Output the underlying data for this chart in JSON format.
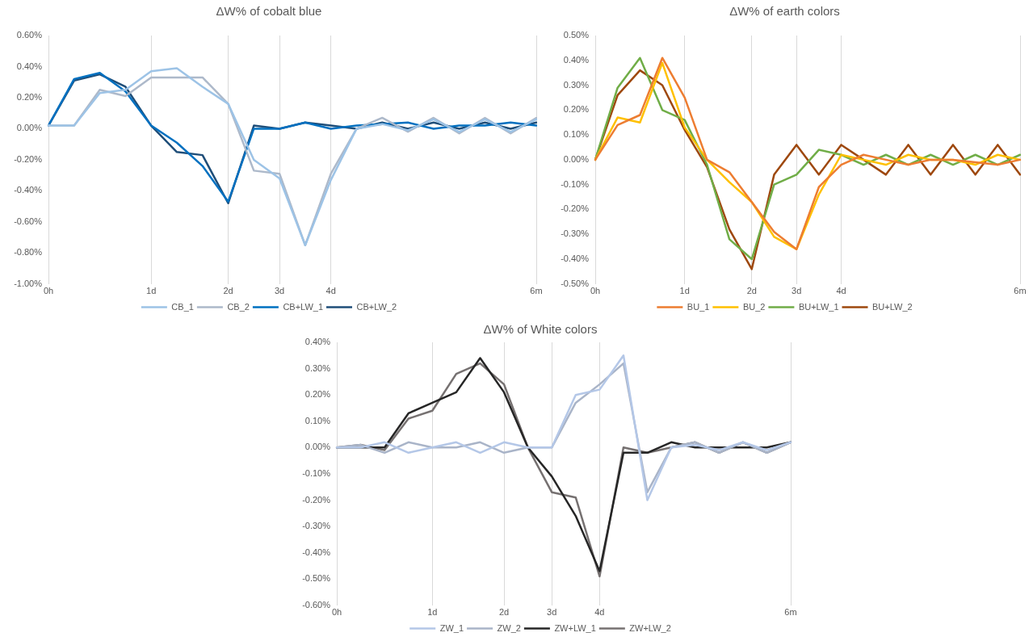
{
  "chart_data": [
    {
      "type": "line",
      "title": "ΔW% of cobalt blue",
      "categories": [
        "0h",
        null,
        null,
        null,
        "1d",
        null,
        null,
        "2d",
        null,
        "3d",
        null,
        "4d",
        null,
        null,
        null,
        null,
        null,
        null,
        null,
        "6m"
      ],
      "series": [
        {
          "name": "CB_1",
          "color": "#9dc3e6",
          "values": [
            0.02,
            0.02,
            0.23,
            0.25,
            0.37,
            0.39,
            0.27,
            0.16,
            -0.2,
            -0.32,
            -0.75,
            -0.33,
            0,
            0.03,
            -0.01,
            0.06,
            -0.02,
            0.06,
            -0.02,
            0.06
          ]
        },
        {
          "name": "CB_2",
          "color": "#adb9ca",
          "values": [
            0.02,
            0.02,
            0.25,
            0.21,
            0.33,
            0.33,
            0.33,
            0.16,
            -0.27,
            -0.29,
            -0.75,
            -0.29,
            0,
            0.07,
            -0.02,
            0.07,
            -0.03,
            0.07,
            -0.03,
            0.07
          ]
        },
        {
          "name": "CB+LW_1",
          "color": "#0070c0",
          "values": [
            0.02,
            0.32,
            0.36,
            0.24,
            0.02,
            -0.09,
            -0.24,
            -0.47,
            0,
            0,
            0.04,
            0,
            0.02,
            0.03,
            0.04,
            0,
            0.02,
            0.02,
            0.04,
            0.02
          ]
        },
        {
          "name": "CB+LW_2",
          "color": "#1f4e79",
          "values": [
            0.02,
            0.31,
            0.35,
            0.27,
            0.02,
            -0.15,
            -0.17,
            -0.48,
            0.02,
            0,
            0.04,
            0.02,
            0,
            0.04,
            0,
            0.04,
            0,
            0.04,
            0,
            0.04
          ]
        }
      ],
      "ylim": [
        -1,
        0.6
      ],
      "yticks": [
        {
          "value": -1,
          "label": "-1.00%"
        },
        {
          "value": -0.8,
          "label": "-0.80%"
        },
        {
          "value": -0.6,
          "label": "-0.60%"
        },
        {
          "value": -0.4,
          "label": "-0.40%"
        },
        {
          "value": -0.2,
          "label": "-0.20%"
        },
        {
          "value": 0,
          "label": "0.00%"
        },
        {
          "value": 0.2,
          "label": "0.20%"
        },
        {
          "value": 0.4,
          "label": "0.40%"
        },
        {
          "value": 0.6,
          "label": "0.60%"
        }
      ],
      "grid": "x",
      "legend": "bottom"
    },
    {
      "type": "line",
      "title": "ΔW% of earth colors",
      "categories": [
        "0h",
        null,
        null,
        null,
        "1d",
        null,
        null,
        "2d",
        null,
        "3d",
        null,
        "4d",
        null,
        null,
        null,
        null,
        null,
        null,
        null,
        "6m"
      ],
      "series": [
        {
          "name": "BU_1",
          "color": "#ed7d31",
          "values": [
            0,
            0.14,
            0.18,
            0.41,
            0.25,
            0,
            -0.05,
            -0.17,
            -0.29,
            -0.36,
            -0.11,
            -0.02,
            0.02,
            0,
            -0.02,
            0,
            0,
            -0.01,
            -0.02,
            0
          ]
        },
        {
          "name": "BU_2",
          "color": "#ffc000",
          "values": [
            0,
            0.17,
            0.15,
            0.39,
            0.13,
            0,
            -0.09,
            -0.17,
            -0.31,
            -0.36,
            -0.14,
            0.02,
            0,
            -0.02,
            0.02,
            0,
            0,
            -0.02,
            0.02,
            0
          ]
        },
        {
          "name": "BU+LW_1",
          "color": "#70ad47",
          "values": [
            0,
            0.29,
            0.41,
            0.2,
            0.16,
            -0.02,
            -0.32,
            -0.4,
            -0.1,
            -0.06,
            0.04,
            0.02,
            -0.02,
            0.02,
            -0.02,
            0.02,
            -0.02,
            0.02,
            -0.02,
            0.02
          ]
        },
        {
          "name": "BU+LW_2",
          "color": "#9e480e",
          "values": [
            0,
            0.26,
            0.36,
            0.3,
            0.12,
            -0.03,
            -0.28,
            -0.44,
            -0.06,
            0.06,
            -0.06,
            0.06,
            0,
            -0.06,
            0.06,
            -0.06,
            0.06,
            -0.06,
            0.06,
            -0.06
          ]
        }
      ],
      "ylim": [
        -0.5,
        0.5
      ],
      "yticks": [
        {
          "value": -0.5,
          "label": "-0.50%"
        },
        {
          "value": -0.4,
          "label": "-0.40%"
        },
        {
          "value": -0.3,
          "label": "-0.30%"
        },
        {
          "value": -0.2,
          "label": "-0.20%"
        },
        {
          "value": -0.1,
          "label": "-0.10%"
        },
        {
          "value": 0,
          "label": "0.00%"
        },
        {
          "value": 0.1,
          "label": "0.10%"
        },
        {
          "value": 0.2,
          "label": "0.20%"
        },
        {
          "value": 0.3,
          "label": "0.30%"
        },
        {
          "value": 0.4,
          "label": "0.40%"
        },
        {
          "value": 0.5,
          "label": "0.50%"
        }
      ],
      "grid": "x",
      "legend": "bottom"
    },
    {
      "type": "line",
      "title": "ΔW% of White colors",
      "categories": [
        "0h",
        null,
        null,
        null,
        "1d",
        null,
        null,
        "2d",
        null,
        "3d",
        null,
        "4d",
        null,
        null,
        null,
        null,
        null,
        null,
        null,
        "6m"
      ],
      "series": [
        {
          "name": "ZW_1",
          "color": "#b4c7e7",
          "values": [
            0,
            0,
            0.02,
            -0.02,
            0,
            0.02,
            -0.02,
            0.02,
            0,
            0,
            0.2,
            0.22,
            0.35,
            -0.2,
            0,
            0.01,
            -0.01,
            0.02,
            -0.01,
            0.02
          ]
        },
        {
          "name": "ZW_2",
          "color": "#a9b4c8",
          "values": [
            0,
            0.01,
            -0.02,
            0.02,
            0,
            0,
            0.02,
            -0.02,
            0,
            0,
            0.17,
            0.24,
            0.32,
            -0.17,
            0,
            0.02,
            -0.02,
            0.02,
            -0.02,
            0.02
          ]
        },
        {
          "name": "ZW+LW_1",
          "color": "#262626",
          "values": [
            0,
            0,
            0,
            0.13,
            0.17,
            0.21,
            0.34,
            0.21,
            0,
            -0.11,
            -0.26,
            -0.47,
            -0.02,
            -0.02,
            0.02,
            0,
            0,
            0,
            0,
            0.02
          ]
        },
        {
          "name": "ZW+LW_2",
          "color": "#767171",
          "values": [
            0,
            0.01,
            -0.01,
            0.11,
            0.14,
            0.28,
            0.32,
            0.24,
            0,
            -0.17,
            -0.19,
            -0.49,
            0,
            -0.02,
            0,
            0.02,
            -0.02,
            0.02,
            -0.02,
            0.02
          ]
        }
      ],
      "ylim": [
        -0.6,
        0.4
      ],
      "yticks": [
        {
          "value": -0.6,
          "label": "-0.60%"
        },
        {
          "value": -0.5,
          "label": "-0.50%"
        },
        {
          "value": -0.4,
          "label": "-0.40%"
        },
        {
          "value": -0.3,
          "label": "-0.30%"
        },
        {
          "value": -0.2,
          "label": "-0.20%"
        },
        {
          "value": -0.1,
          "label": "-0.10%"
        },
        {
          "value": 0,
          "label": "0.00%"
        },
        {
          "value": 0.1,
          "label": "0.10%"
        },
        {
          "value": 0.2,
          "label": "0.20%"
        },
        {
          "value": 0.3,
          "label": "0.30%"
        },
        {
          "value": 0.4,
          "label": "0.40%"
        }
      ],
      "grid": "x",
      "legend": "bottom"
    }
  ]
}
